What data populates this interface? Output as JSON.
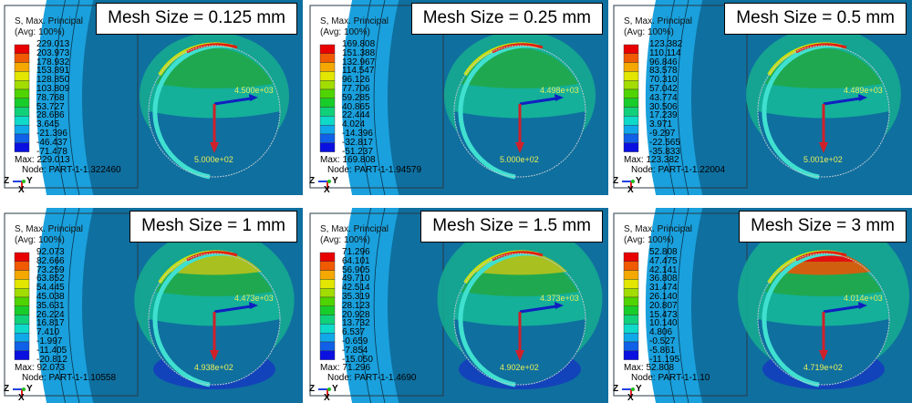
{
  "legend_title": "S, Max. Principal",
  "legend_subtitle": "(Avg: 100%)",
  "colors": {
    "bands": [
      "#e80000",
      "#f05a00",
      "#f5a800",
      "#e2e600",
      "#a2dc00",
      "#4fd400",
      "#18cc2a",
      "#10d07a",
      "#0fd9c8",
      "#10a8e8",
      "#1060e8",
      "#0a10e0"
    ],
    "background_outer": "#1aa0dc",
    "background_inner": "#0f6f9f",
    "annotation": "#e6ef5a",
    "arrow_red": "#d0202a",
    "arrow_blue": "#1020c0"
  },
  "panels": [
    {
      "title": "Mesh Size = 0.125 mm",
      "values": [
        "229.013",
        "203.973",
        "178.932",
        "153.891",
        "128.850",
        "103.809",
        "78.768",
        "53.727",
        "28.686",
        "3.645",
        "-21.396",
        "-46.437",
        "-71.478"
      ],
      "max": "Max: 229.013",
      "node": "Node: PART-1-1.322460",
      "arrow_h": "4.500e+03",
      "arrow_v": "5.000e+02",
      "intensity": 0.15
    },
    {
      "title": "Mesh Size = 0.25 mm",
      "values": [
        "169.808",
        "151.388",
        "132.967",
        "114.547",
        "96.126",
        "77.706",
        "59.285",
        "40.865",
        "22.444",
        "4.024",
        "-14.396",
        "-32.817",
        "-51.237"
      ],
      "max": "Max: 169.808",
      "node": "Node: PART-1-1.94579",
      "arrow_h": "4.498e+03",
      "arrow_v": "5.000e+02",
      "intensity": 0.22
    },
    {
      "title": "Mesh Size = 0.5 mm",
      "values": [
        "123.382",
        "110.114",
        "96.846",
        "83.578",
        "70.310",
        "57.042",
        "43.774",
        "30.506",
        "17.239",
        "3.971",
        "-9.297",
        "-22.565",
        "-35.833"
      ],
      "max": "Max: 123.382",
      "node": "Node: PART-1-1.22004",
      "arrow_h": "4.489e+03",
      "arrow_v": "5.001e+02",
      "intensity": 0.35
    },
    {
      "title": "Mesh Size = 1 mm",
      "values": [
        "92.073",
        "82.666",
        "73.259",
        "63.852",
        "54.445",
        "45.038",
        "35.631",
        "26.224",
        "16.817",
        "7.410",
        "-1.997",
        "-11.405",
        "-20.812"
      ],
      "max": "Max: 92.073",
      "node": "Node: PART-1-1.10558",
      "arrow_h": "4.473e+03",
      "arrow_v": "4.938e+02",
      "intensity": 0.55
    },
    {
      "title": "Mesh Size = 1.5 mm",
      "values": [
        "71.296",
        "64.101",
        "56.905",
        "49.710",
        "42.514",
        "35.319",
        "28.123",
        "20.928",
        "13.732",
        "6.537",
        "-0.659",
        "-7.854",
        "-15.050"
      ],
      "max": "Max: 71.296",
      "node": "Node: PART-1-1.4690",
      "arrow_h": "4.373e+03",
      "arrow_v": "4.902e+02",
      "intensity": 0.75
    },
    {
      "title": "Mesh Size = 3 mm",
      "values": [
        "52.808",
        "47.475",
        "42.141",
        "36.808",
        "31.474",
        "26.140",
        "20.807",
        "15.473",
        "10.140",
        "4.806",
        "-0.527",
        "-5.861",
        "-11.195"
      ],
      "max": "Max: 52.808",
      "node": "Node: PART-1-1.10",
      "arrow_h": "4.014e+03",
      "arrow_v": "4.719e+02",
      "intensity": 1.0
    }
  ],
  "triad": {
    "z": "Z",
    "y": "Y",
    "x": "X"
  }
}
